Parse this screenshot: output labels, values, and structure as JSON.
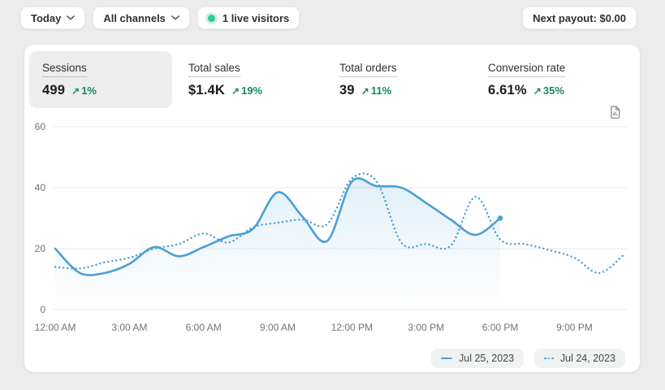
{
  "toolbar": {
    "date_range": "Today",
    "channel_filter": "All channels",
    "live_visitors": "1 live visitors",
    "next_payout": "Next payout: $0.00"
  },
  "icons": {
    "increase_arrow": "↗",
    "chevron_down": "chevron-down",
    "report_icon": "document-with-bar-chart"
  },
  "metrics": [
    {
      "label": "Sessions",
      "value": "499",
      "delta": "1%",
      "selected": true
    },
    {
      "label": "Total sales",
      "value": "$1.4K",
      "delta": "19%",
      "selected": false
    },
    {
      "label": "Total orders",
      "value": "39",
      "delta": "11%",
      "selected": false
    },
    {
      "label": "Conversion rate",
      "value": "6.61%",
      "delta": "35%",
      "selected": false
    }
  ],
  "chart_data": {
    "type": "line",
    "x_unit": "hour_of_day",
    "x_tick_hours": [
      0,
      3,
      6,
      9,
      12,
      15,
      18,
      21
    ],
    "x_tick_labels": [
      "12:00 AM",
      "3:00 AM",
      "6:00 AM",
      "9:00 AM",
      "12:00 PM",
      "3:00 PM",
      "6:00 PM",
      "9:00 PM"
    ],
    "y_ticks": [
      0,
      20,
      40,
      60
    ],
    "ylim": [
      0,
      60
    ],
    "xlim_hours": [
      0,
      23
    ],
    "grid": "horizontal",
    "legend_position": "bottom-right",
    "line_color": "#4a9fd8",
    "series": [
      {
        "name": "Jul 25, 2023",
        "style": "solid",
        "area_fill": true,
        "hours": [
          0,
          1,
          2,
          3,
          4,
          5,
          6,
          7,
          8,
          9,
          10,
          11,
          12,
          13,
          14,
          15,
          16,
          17,
          18
        ],
        "values": [
          20,
          12,
          12,
          15,
          20.5,
          17.5,
          20.5,
          24,
          26.5,
          38.5,
          30.5,
          22.5,
          42,
          40.5,
          40,
          35,
          29.5,
          24.5,
          30
        ]
      },
      {
        "name": "Jul 24, 2023",
        "style": "dotted",
        "area_fill": false,
        "hours": [
          0,
          1,
          2,
          3,
          4,
          5,
          6,
          7,
          8,
          9,
          10,
          11,
          12,
          13,
          14,
          15,
          16,
          17,
          18,
          19,
          20,
          21,
          22,
          23
        ],
        "values": [
          14,
          13.5,
          15.5,
          17,
          20,
          21.5,
          25,
          22,
          27,
          28.5,
          29.5,
          28,
          43,
          42,
          22,
          21.5,
          21,
          37,
          23,
          21.5,
          19.5,
          17,
          12,
          18
        ]
      }
    ]
  },
  "legend": [
    {
      "label": "Jul 25, 2023",
      "style": "solid"
    },
    {
      "label": "Jul 24, 2023",
      "style": "dotted"
    }
  ],
  "colors": {
    "page_bg": "#ececec",
    "card_bg": "#ffffff",
    "accent_blue": "#4a9fd8",
    "success_green": "#178a5c",
    "live_dot": "#2ecd92",
    "grid_line": "#e8e8e8",
    "axis_text": "#737373",
    "selected_metric_bg": "#ededed"
  }
}
